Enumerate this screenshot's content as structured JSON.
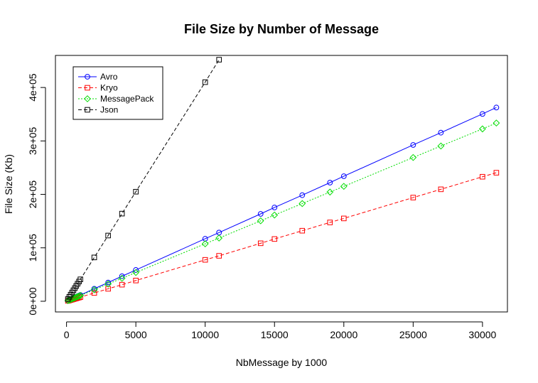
{
  "chart_data": {
    "type": "line",
    "title": "File Size by Number of Message",
    "xlabel": "NbMessage by 1000",
    "ylabel": "File Size (Kb)",
    "xlim": [
      -800,
      31800
    ],
    "ylim": [
      -20000,
      460000
    ],
    "x_ticks": [
      0,
      5000,
      10000,
      15000,
      20000,
      25000,
      30000
    ],
    "x_tick_labels": [
      "0",
      "5000",
      "10000",
      "15000",
      "20000",
      "25000",
      "30000"
    ],
    "y_ticks": [
      0,
      100000,
      200000,
      300000,
      400000
    ],
    "y_tick_labels": [
      "0e+00",
      "1e+05",
      "2e+05",
      "3e+05",
      "4e+05"
    ],
    "legend_position": "top-left",
    "grid": false,
    "series": [
      {
        "name": "Avro",
        "color": "#0000ff",
        "marker": "circle",
        "dash": "solid",
        "points": [
          [
            100,
            1200
          ],
          [
            200,
            2400
          ],
          [
            300,
            3500
          ],
          [
            400,
            4700
          ],
          [
            500,
            5900
          ],
          [
            600,
            7000
          ],
          [
            700,
            8200
          ],
          [
            800,
            9400
          ],
          [
            900,
            10600
          ],
          [
            1000,
            11700
          ],
          [
            2000,
            23400
          ],
          [
            3000,
            35000
          ],
          [
            4000,
            46800
          ],
          [
            5000,
            58500
          ],
          [
            10000,
            117000
          ],
          [
            11000,
            128500
          ],
          [
            14000,
            163500
          ],
          [
            15000,
            175500
          ],
          [
            17000,
            198500
          ],
          [
            19000,
            222000
          ],
          [
            20000,
            234000
          ],
          [
            25000,
            292500
          ],
          [
            27000,
            315500
          ],
          [
            30000,
            350500
          ],
          [
            31000,
            362500
          ]
        ]
      },
      {
        "name": "Kryo",
        "color": "#ff0000",
        "marker": "square",
        "dash": "dashed",
        "points": [
          [
            100,
            780
          ],
          [
            200,
            1560
          ],
          [
            300,
            2340
          ],
          [
            400,
            3120
          ],
          [
            500,
            3900
          ],
          [
            600,
            4680
          ],
          [
            700,
            5460
          ],
          [
            800,
            6240
          ],
          [
            900,
            7020
          ],
          [
            1000,
            7800
          ],
          [
            2000,
            15500
          ],
          [
            3000,
            23300
          ],
          [
            4000,
            31000
          ],
          [
            5000,
            38800
          ],
          [
            10000,
            77500
          ],
          [
            11000,
            85000
          ],
          [
            14000,
            108500
          ],
          [
            15000,
            116500
          ],
          [
            17000,
            132000
          ],
          [
            19000,
            147500
          ],
          [
            20000,
            155000
          ],
          [
            25000,
            194000
          ],
          [
            27000,
            209500
          ],
          [
            30000,
            233000
          ],
          [
            31000,
            240500
          ]
        ]
      },
      {
        "name": "MessagePack",
        "color": "#00dd00",
        "marker": "diamond",
        "dash": "dotted",
        "points": [
          [
            100,
            1080
          ],
          [
            200,
            2160
          ],
          [
            300,
            3240
          ],
          [
            400,
            4320
          ],
          [
            500,
            5400
          ],
          [
            600,
            6480
          ],
          [
            700,
            7560
          ],
          [
            800,
            8640
          ],
          [
            900,
            9720
          ],
          [
            1000,
            10800
          ],
          [
            2000,
            21500
          ],
          [
            3000,
            32300
          ],
          [
            4000,
            43000
          ],
          [
            5000,
            53800
          ],
          [
            10000,
            107500
          ],
          [
            11000,
            118300
          ],
          [
            14000,
            150500
          ],
          [
            15000,
            161300
          ],
          [
            17000,
            182800
          ],
          [
            19000,
            204300
          ],
          [
            20000,
            215000
          ],
          [
            25000,
            269000
          ],
          [
            27000,
            290500
          ],
          [
            30000,
            322500
          ],
          [
            31000,
            333500
          ]
        ]
      },
      {
        "name": "Json",
        "color": "#000000",
        "marker": "square",
        "dash": "dashed",
        "points": [
          [
            100,
            4100
          ],
          [
            200,
            8200
          ],
          [
            300,
            12300
          ],
          [
            400,
            16400
          ],
          [
            500,
            20500
          ],
          [
            600,
            24600
          ],
          [
            700,
            28700
          ],
          [
            800,
            32800
          ],
          [
            900,
            36900
          ],
          [
            1000,
            41000
          ],
          [
            2000,
            82000
          ],
          [
            3000,
            123000
          ],
          [
            4000,
            164000
          ],
          [
            5000,
            205000
          ],
          [
            10000,
            410000
          ],
          [
            11000,
            452000
          ]
        ]
      }
    ]
  }
}
